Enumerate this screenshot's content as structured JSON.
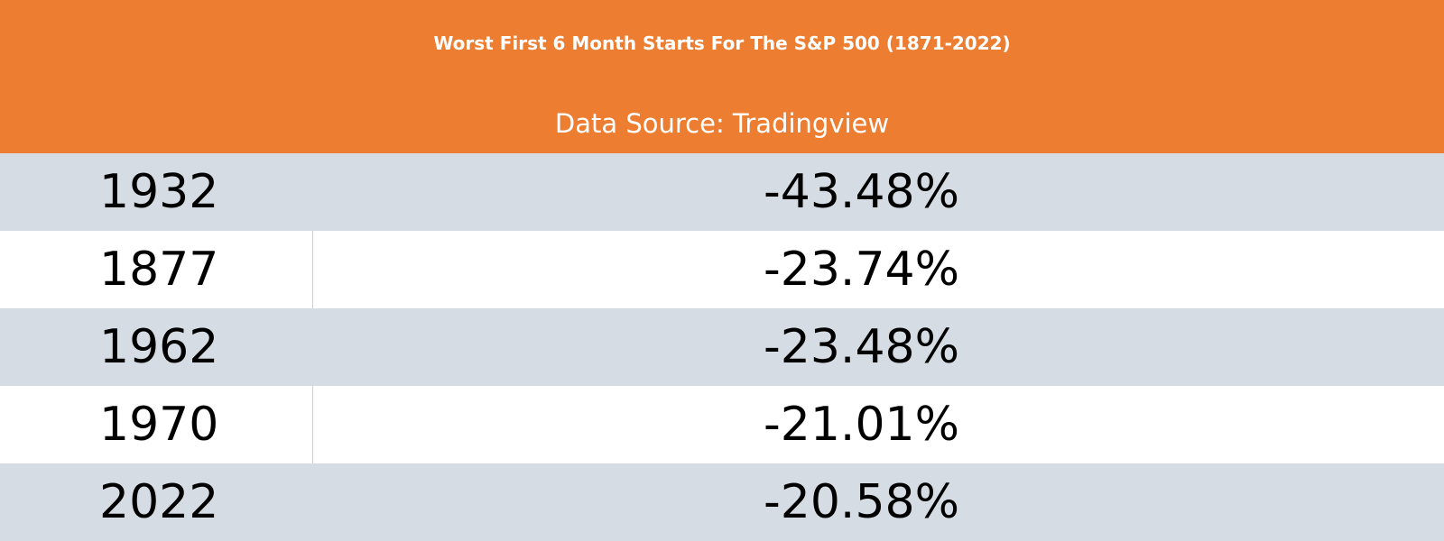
{
  "chart_data": {
    "type": "table",
    "title": "Worst First 6 Month Starts For The S&P 500 (1871-2022)",
    "subtitle": "Data Source: Tradingview",
    "rows": [
      {
        "year": "1932",
        "value": "-43.48%"
      },
      {
        "year": "1877",
        "value": "-23.74%"
      },
      {
        "year": "1962",
        "value": "-23.48%"
      },
      {
        "year": "1970",
        "value": "-21.01%"
      },
      {
        "year": "2022",
        "value": "-20.58%"
      }
    ],
    "values": [
      -43.48,
      -23.74,
      -23.48,
      -21.01,
      -20.58
    ]
  },
  "colors": {
    "header_background": "#ED7D31",
    "header_text": "#FFFFFF",
    "row_shaded": "#D6DCE4",
    "row_plain": "#FFFFFF",
    "body_text": "#000000"
  }
}
